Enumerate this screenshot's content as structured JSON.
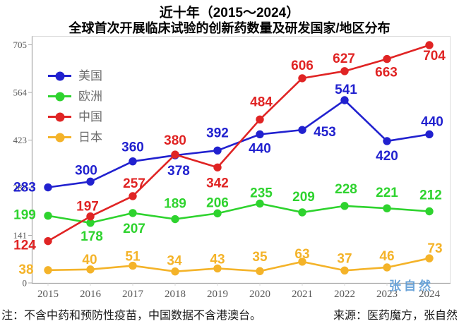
{
  "title": {
    "line1": "近十年（2015～2024）",
    "line2": "全球首次开展临床试验的创新药数量及研发国家/地区分布"
  },
  "watermark": "张自然",
  "footnote": {
    "note": "注：不含中药和预防性疫苗，中国数据不含港澳台。",
    "source": "来源：医药魔方，张自然"
  },
  "chart_data": {
    "type": "line",
    "title": "近十年（2015～2024）全球首次开展临床试验的创新药数量及研发国家/地区分布",
    "x": [
      2015,
      2016,
      2017,
      2018,
      2019,
      2020,
      2021,
      2022,
      2023,
      2024
    ],
    "xlabel": "",
    "ylabel": "",
    "ylim": [
      0,
      705
    ],
    "yticks": [
      0,
      141,
      282,
      423,
      564,
      705
    ],
    "grid": false,
    "legend_position": "inside-top-left",
    "axis_color": "#a8a8a8",
    "border_color": "#dcdcdc",
    "tick_label_color": "#595959",
    "series": [
      {
        "name": "美国",
        "color": "#2121cf",
        "values": [
          283,
          300,
          360,
          378,
          392,
          440,
          453,
          541,
          420,
          440
        ],
        "label_offsets": [
          [
            -33,
            0
          ],
          [
            -6,
            -16
          ],
          [
            0,
            -20
          ],
          [
            5,
            22
          ],
          [
            0,
            -25
          ],
          [
            0,
            20
          ],
          [
            32,
            3
          ],
          [
            2,
            -15
          ],
          [
            0,
            21
          ],
          [
            4,
            -18
          ]
        ]
      },
      {
        "name": "欧洲",
        "color": "#2ed32e",
        "values": [
          199,
          178,
          207,
          189,
          206,
          235,
          209,
          228,
          221,
          212
        ],
        "label_offsets": [
          [
            -33,
            -1
          ],
          [
            2,
            19
          ],
          [
            2,
            22
          ],
          [
            0,
            -22
          ],
          [
            0,
            -15
          ],
          [
            2,
            -15
          ],
          [
            2,
            -22
          ],
          [
            2,
            -24
          ],
          [
            0,
            -22
          ],
          [
            2,
            -23
          ]
        ]
      },
      {
        "name": "中国",
        "color": "#e02424",
        "values": [
          124,
          197,
          257,
          380,
          342,
          484,
          606,
          627,
          663,
          704
        ],
        "label_offsets": [
          [
            -33,
            6
          ],
          [
            -4,
            -14
          ],
          [
            2,
            -18
          ],
          [
            0,
            -20
          ],
          [
            0,
            22
          ],
          [
            2,
            -25
          ],
          [
            0,
            -18
          ],
          [
            -1,
            -18
          ],
          [
            -1,
            19
          ],
          [
            7,
            15
          ]
        ]
      },
      {
        "name": "日本",
        "color": "#f4b329",
        "values": [
          38,
          40,
          51,
          34,
          43,
          35,
          63,
          37,
          46,
          73
        ],
        "label_offsets": [
          [
            -31,
            -1
          ],
          [
            -1,
            -14
          ],
          [
            0,
            -13
          ],
          [
            -1,
            -15
          ],
          [
            0,
            -13
          ],
          [
            0,
            -20
          ],
          [
            0,
            -11
          ],
          [
            0,
            -17
          ],
          [
            0,
            -16
          ],
          [
            8,
            -14
          ]
        ]
      }
    ]
  }
}
